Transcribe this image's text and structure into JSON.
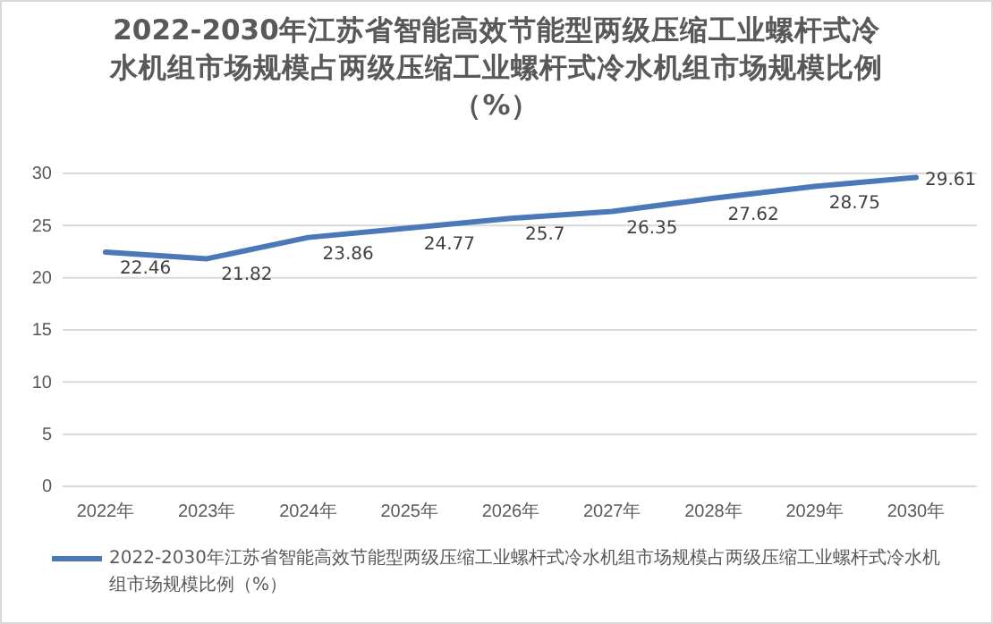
{
  "chart_data": {
    "type": "line",
    "title": "2022-2030年江苏省智能高效节能型两级压缩工业螺杆式冷水机组市场规模占两级压缩工业螺杆式冷水机组市场规模比例（%）",
    "categories": [
      "2022年",
      "2023年",
      "2024年",
      "2025年",
      "2026年",
      "2027年",
      "2028年",
      "2029年",
      "2030年"
    ],
    "series": [
      {
        "name": "2022-2030年江苏省智能高效节能型两级压缩工业螺杆式冷水机组市场规模占两级压缩工业螺杆式冷水机组市场规模比例（%）",
        "color": "#4a78b8",
        "values": [
          22.46,
          21.82,
          23.86,
          24.77,
          25.7,
          26.35,
          27.62,
          28.75,
          29.61
        ]
      }
    ],
    "ylim": [
      0,
      30
    ],
    "yticks": [
      0,
      5,
      10,
      15,
      20,
      25,
      30
    ],
    "grid": "y",
    "legend": "bottom",
    "data_labels": true,
    "marker": "none",
    "line_style": "solid"
  }
}
